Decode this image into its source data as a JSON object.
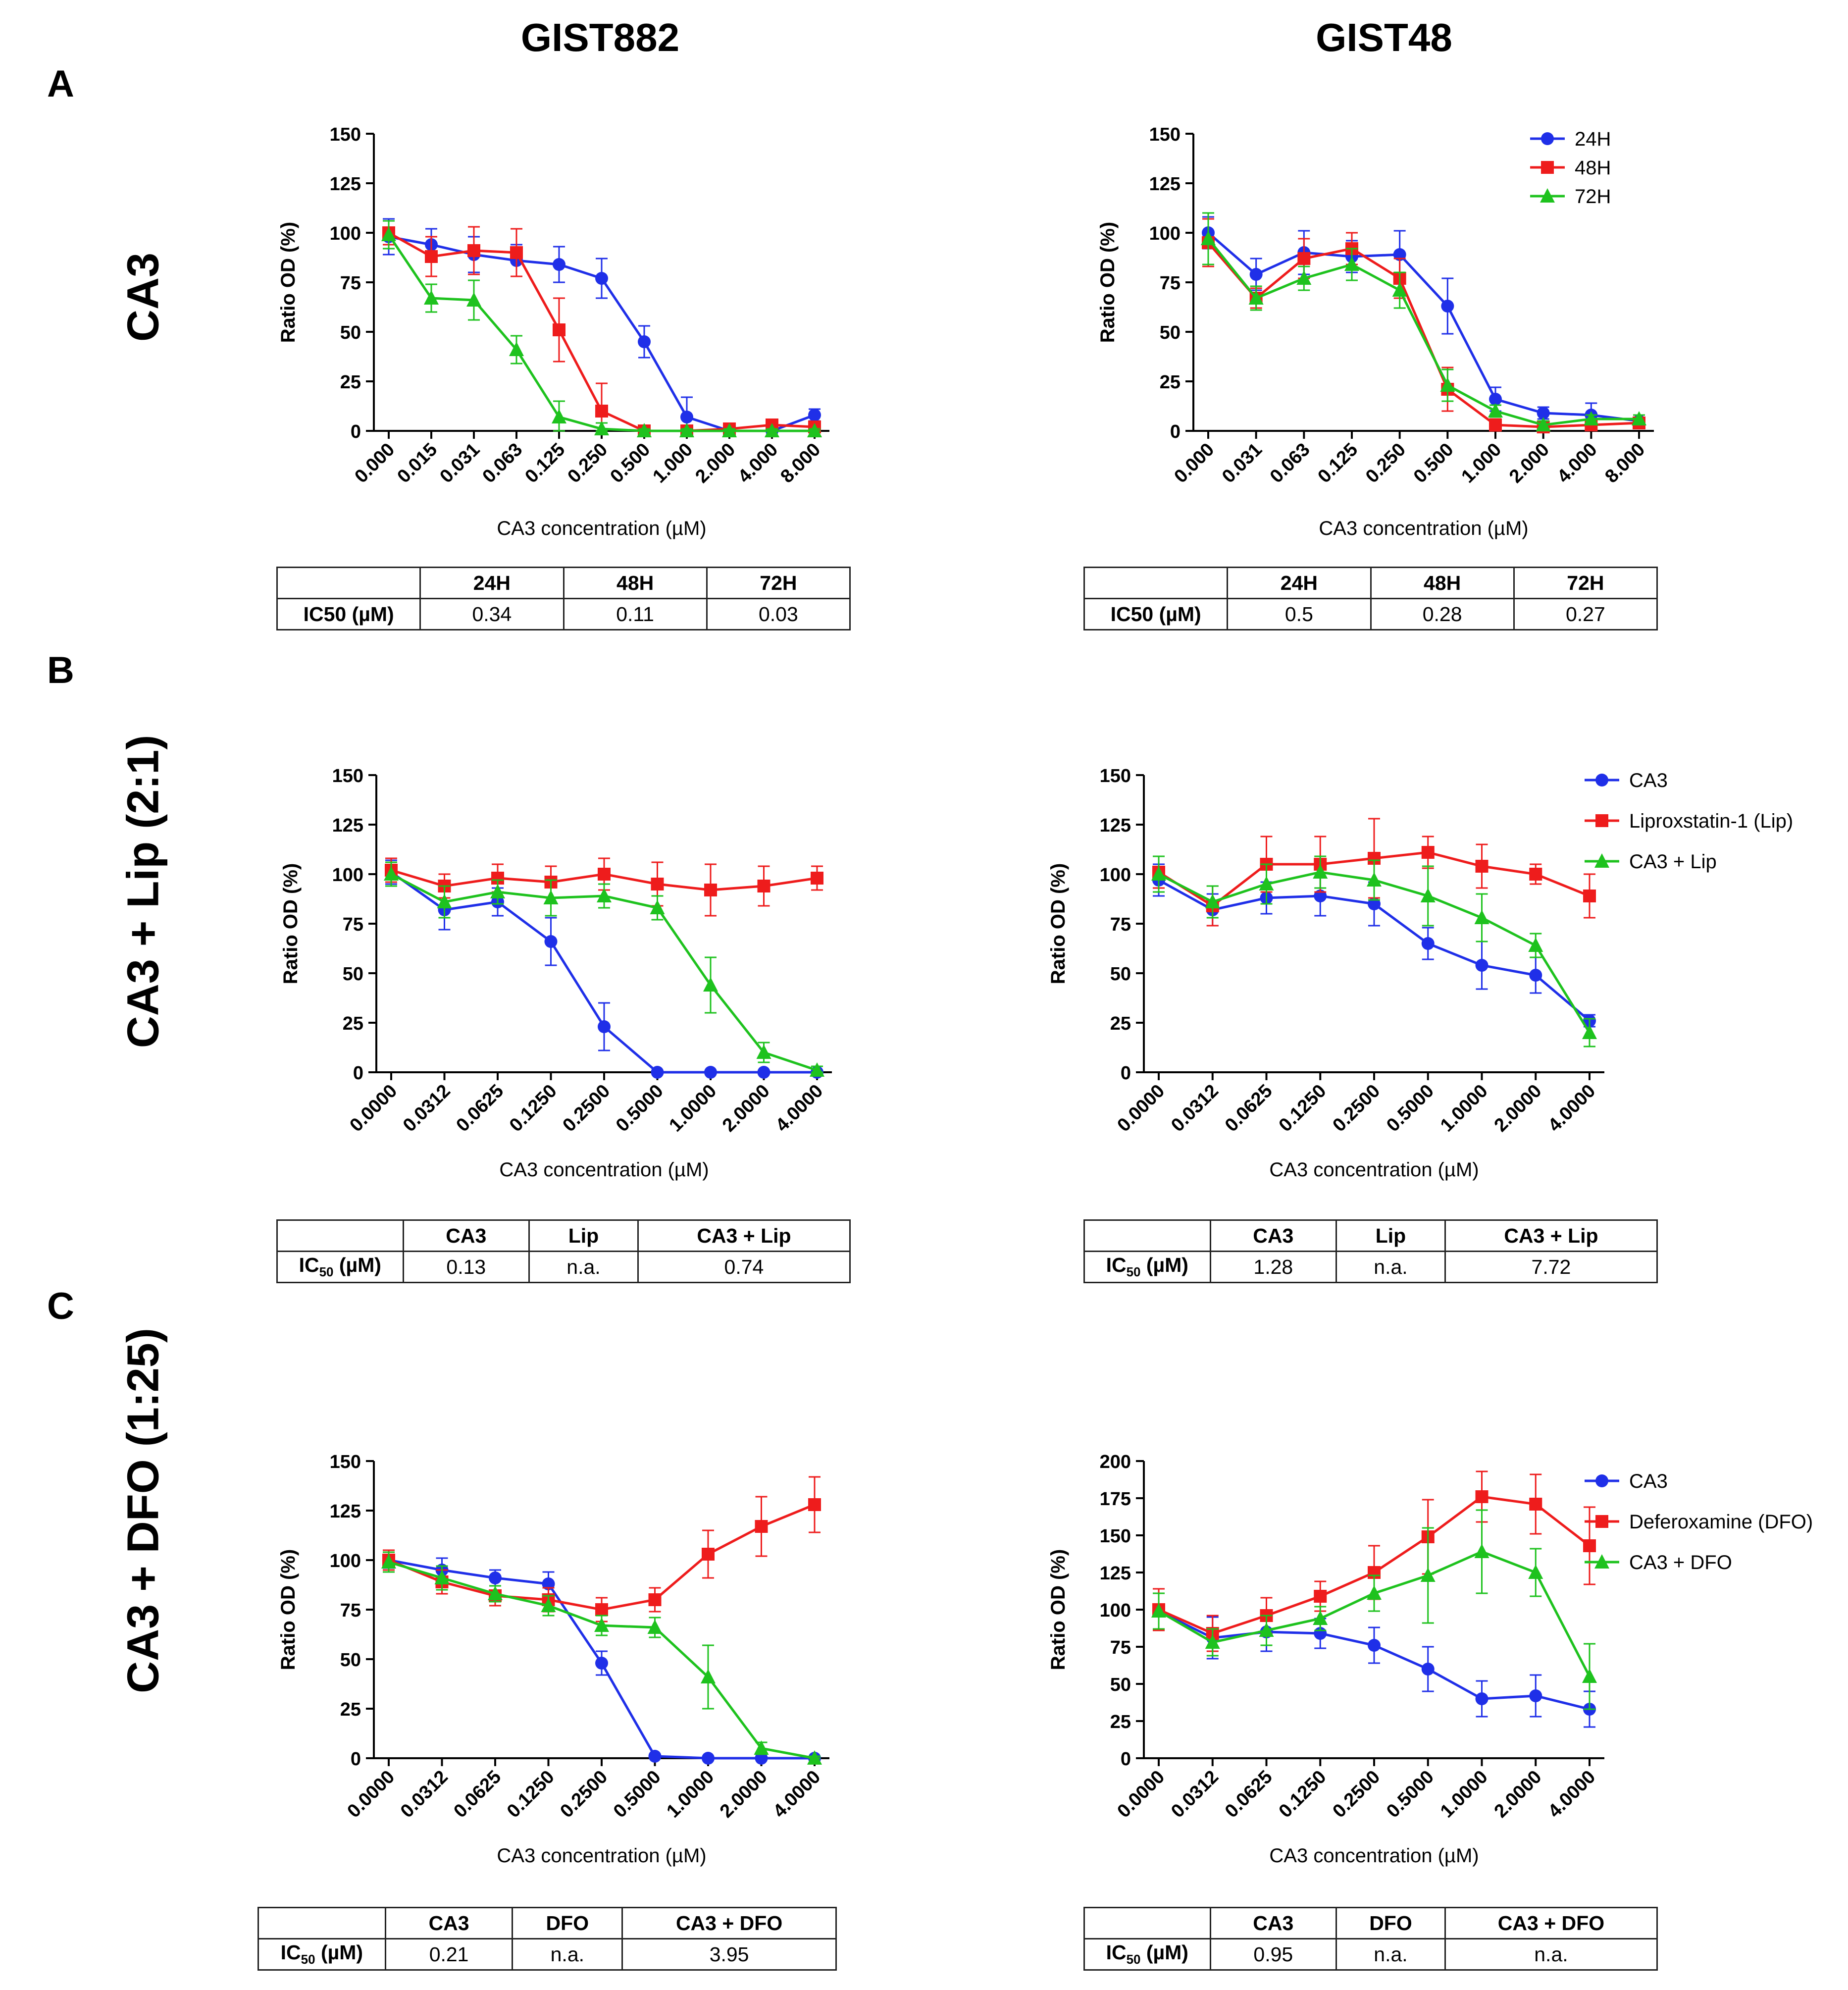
{
  "columns": {
    "left": "GIST882",
    "right": "GIST48"
  },
  "panels": {
    "A": {
      "letter": "A",
      "row_label": "CA3"
    },
    "B": {
      "letter": "B",
      "row_label": "CA3 + Lip (2:1)"
    },
    "C": {
      "letter": "C",
      "row_label": "CA3 + DFO (1:25)"
    }
  },
  "colors": {
    "blue": "#1f2fe8",
    "red": "#ee1c1c",
    "green": "#1ec21e"
  },
  "chart_data": [
    {
      "id": "A-GIST882",
      "type": "line",
      "xlabel": "CA3 concentration (µM)",
      "ylabel": "Ratio OD (%)",
      "categories": [
        "0.000",
        "0.015",
        "0.031",
        "0.063",
        "0.125",
        "0.250",
        "0.500",
        "1.000",
        "2.000",
        "4.000",
        "8.000"
      ],
      "ylim": [
        0,
        150
      ],
      "yticks": [
        0,
        25,
        50,
        75,
        100,
        125,
        150
      ],
      "legend": "none",
      "series": [
        {
          "name": "24H",
          "color": "#1f2fe8",
          "marker": "circle",
          "values": [
            98,
            94,
            89,
            86,
            84,
            77,
            45,
            7,
            0,
            0,
            8
          ],
          "errors": [
            9,
            8,
            9,
            8,
            9,
            10,
            8,
            10,
            2,
            2,
            3
          ]
        },
        {
          "name": "48H",
          "color": "#ee1c1c",
          "marker": "square",
          "values": [
            100,
            88,
            91,
            90,
            51,
            10,
            0,
            0,
            1,
            3,
            2
          ],
          "errors": [
            6,
            10,
            12,
            12,
            16,
            14,
            2,
            2,
            2,
            2,
            2
          ]
        },
        {
          "name": "72H",
          "color": "#1ec21e",
          "marker": "triangle",
          "values": [
            99,
            67,
            66,
            41,
            7,
            1,
            0,
            0,
            0,
            0,
            0
          ],
          "errors": [
            7,
            7,
            10,
            7,
            8,
            3,
            1,
            1,
            1,
            1,
            1
          ]
        }
      ],
      "table": {
        "headers": [
          "",
          "24H",
          "48H",
          "72H"
        ],
        "row_label": "IC50 (µM)",
        "values": [
          "0.34",
          "0.11",
          "0.03"
        ]
      }
    },
    {
      "id": "A-GIST48",
      "type": "line",
      "xlabel": "CA3 concentration (µM)",
      "ylabel": "Ratio OD (%)",
      "categories": [
        "0.000",
        "0.031",
        "0.063",
        "0.125",
        "0.250",
        "0.500",
        "1.000",
        "2.000",
        "4.000",
        "8.000"
      ],
      "ylim": [
        0,
        150
      ],
      "yticks": [
        0,
        25,
        50,
        75,
        100,
        125,
        150
      ],
      "legend": "top-right",
      "series": [
        {
          "name": "24H",
          "color": "#1f2fe8",
          "marker": "circle",
          "values": [
            100,
            79,
            90,
            88,
            89,
            63,
            16,
            9,
            8,
            5
          ],
          "errors": [
            8,
            8,
            11,
            8,
            12,
            14,
            6,
            3,
            6,
            3
          ]
        },
        {
          "name": "48H",
          "color": "#ee1c1c",
          "marker": "square",
          "values": [
            95,
            67,
            87,
            92,
            77,
            21,
            3,
            2,
            3,
            4
          ],
          "errors": [
            12,
            5,
            10,
            8,
            10,
            11,
            3,
            2,
            2,
            2
          ]
        },
        {
          "name": "72H",
          "color": "#1ec21e",
          "marker": "triangle",
          "values": [
            97,
            67,
            77,
            84,
            71,
            23,
            10,
            3,
            6,
            6
          ],
          "errors": [
            13,
            6,
            6,
            8,
            9,
            8,
            3,
            2,
            2,
            2
          ]
        }
      ],
      "table": {
        "headers": [
          "",
          "24H",
          "48H",
          "72H"
        ],
        "row_label": "IC50 (µM)",
        "values": [
          "0.5",
          "0.28",
          "0.27"
        ]
      }
    },
    {
      "id": "B-GIST882",
      "type": "line",
      "xlabel": "CA3 concentration (µM)",
      "ylabel": "Ratio OD (%)",
      "categories": [
        "0.0000",
        "0.0312",
        "0.0625",
        "0.1250",
        "0.2500",
        "0.5000",
        "1.0000",
        "2.0000",
        "4.0000"
      ],
      "ylim": [
        0,
        150
      ],
      "yticks": [
        0,
        25,
        50,
        75,
        100,
        125,
        150
      ],
      "legend": "none",
      "series": [
        {
          "name": "CA3",
          "color": "#1f2fe8",
          "marker": "circle",
          "values": [
            101,
            82,
            86,
            66,
            23,
            0,
            0,
            0,
            0
          ],
          "errors": [
            6,
            10,
            7,
            12,
            12,
            1,
            1,
            1,
            1
          ]
        },
        {
          "name": "Liproxstatin-1 (Lip)",
          "color": "#ee1c1c",
          "marker": "square",
          "values": [
            102,
            94,
            98,
            96,
            100,
            95,
            92,
            94,
            98
          ],
          "errors": [
            6,
            6,
            7,
            8,
            8,
            11,
            13,
            10,
            6
          ]
        },
        {
          "name": "CA3 + Lip",
          "color": "#1ec21e",
          "marker": "triangle",
          "values": [
            100,
            86,
            91,
            88,
            89,
            83,
            44,
            10,
            1
          ],
          "errors": [
            6,
            8,
            6,
            9,
            6,
            6,
            14,
            5,
            2
          ]
        }
      ],
      "table": {
        "headers": [
          "",
          "CA3",
          "Lip",
          "CA3 + Lip"
        ],
        "row_label": "IC50 (µM)",
        "values": [
          "0.13",
          "n.a.",
          "0.74"
        ]
      }
    },
    {
      "id": "B-GIST48",
      "type": "line",
      "xlabel": "CA3 concentration (µM)",
      "ylabel": "Ratio OD (%)",
      "categories": [
        "0.0000",
        "0.0312",
        "0.0625",
        "0.1250",
        "0.2500",
        "0.5000",
        "1.0000",
        "2.0000",
        "4.0000"
      ],
      "ylim": [
        0,
        150
      ],
      "yticks": [
        0,
        25,
        50,
        75,
        100,
        125,
        150
      ],
      "legend": "right",
      "series": [
        {
          "name": "CA3",
          "color": "#1f2fe8",
          "marker": "circle",
          "values": [
            97,
            82,
            88,
            89,
            85,
            65,
            54,
            49,
            26
          ],
          "errors": [
            8,
            8,
            8,
            10,
            11,
            8,
            12,
            9,
            3
          ]
        },
        {
          "name": "Liproxstatin-1 (Lip)",
          "color": "#ee1c1c",
          "marker": "square",
          "values": [
            101,
            84,
            105,
            105,
            108,
            111,
            104,
            100,
            89
          ],
          "errors": [
            8,
            10,
            14,
            14,
            20,
            8,
            11,
            5,
            11
          ]
        },
        {
          "name": "CA3 + Lip",
          "color": "#1ec21e",
          "marker": "triangle",
          "values": [
            100,
            86,
            95,
            101,
            97,
            89,
            78,
            64,
            20
          ],
          "errors": [
            9,
            8,
            10,
            8,
            10,
            15,
            12,
            6,
            7
          ]
        }
      ],
      "table": {
        "headers": [
          "",
          "CA3",
          "Lip",
          "CA3 + Lip"
        ],
        "row_label": "IC50 (µM)",
        "values": [
          "1.28",
          "n.a.",
          "7.72"
        ]
      }
    },
    {
      "id": "C-GIST882",
      "type": "line",
      "xlabel": "CA3 concentration (µM)",
      "ylabel": "Ratio OD (%)",
      "categories": [
        "0.0000",
        "0.0312",
        "0.0625",
        "0.1250",
        "0.2500",
        "0.5000",
        "1.0000",
        "2.0000",
        "4.0000"
      ],
      "ylim": [
        0,
        150
      ],
      "yticks": [
        0,
        25,
        50,
        75,
        100,
        125,
        150
      ],
      "legend": "none",
      "series": [
        {
          "name": "CA3",
          "color": "#1f2fe8",
          "marker": "circle",
          "values": [
            100,
            95,
            91,
            88,
            48,
            1,
            0,
            0,
            0
          ],
          "errors": [
            4,
            6,
            4,
            6,
            6,
            1,
            1,
            1,
            1
          ]
        },
        {
          "name": "Deferoxamine (DFO)",
          "color": "#ee1c1c",
          "marker": "square",
          "values": [
            100,
            89,
            82,
            80,
            75,
            80,
            103,
            117,
            128
          ],
          "errors": [
            5,
            6,
            5,
            6,
            6,
            6,
            12,
            15,
            14
          ]
        },
        {
          "name": "CA3 + DFO",
          "color": "#1ec21e",
          "marker": "triangle",
          "values": [
            99,
            91,
            83,
            77,
            67,
            66,
            41,
            5,
            0
          ],
          "errors": [
            5,
            6,
            4,
            5,
            5,
            5,
            16,
            3,
            1
          ]
        }
      ],
      "table": {
        "headers": [
          "",
          "CA3",
          "DFO",
          "CA3 + DFO"
        ],
        "row_label": "IC50 (µM)",
        "values": [
          "0.21",
          "n.a.",
          "3.95"
        ]
      }
    },
    {
      "id": "C-GIST48",
      "type": "line",
      "xlabel": "CA3 concentration (µM)",
      "ylabel": "Ratio OD (%)",
      "categories": [
        "0.0000",
        "0.0312",
        "0.0625",
        "0.1250",
        "0.2500",
        "0.5000",
        "1.0000",
        "2.0000",
        "4.0000"
      ],
      "ylim": [
        0,
        200
      ],
      "yticks": [
        0,
        25,
        50,
        75,
        100,
        125,
        150,
        175,
        200
      ],
      "legend": "right",
      "series": [
        {
          "name": "CA3",
          "color": "#1f2fe8",
          "marker": "circle",
          "values": [
            99,
            81,
            85,
            84,
            76,
            60,
            40,
            42,
            33
          ],
          "errors": [
            12,
            14,
            13,
            10,
            12,
            15,
            12,
            14,
            12
          ]
        },
        {
          "name": "Deferoxamine (DFO)",
          "color": "#ee1c1c",
          "marker": "square",
          "values": [
            100,
            84,
            96,
            109,
            125,
            149,
            176,
            171,
            143
          ],
          "errors": [
            14,
            12,
            12,
            10,
            18,
            25,
            17,
            20,
            26
          ]
        },
        {
          "name": "CA3 + DFO",
          "color": "#1ec21e",
          "marker": "triangle",
          "values": [
            99,
            78,
            86,
            94,
            111,
            123,
            139,
            125,
            55
          ],
          "errors": [
            12,
            9,
            10,
            8,
            12,
            32,
            28,
            16,
            22
          ]
        }
      ],
      "table": {
        "headers": [
          "",
          "CA3",
          "DFO",
          "CA3 + DFO"
        ],
        "row_label": "IC50 (µM)",
        "values": [
          "0.95",
          "n.a.",
          "n.a."
        ]
      }
    }
  ]
}
